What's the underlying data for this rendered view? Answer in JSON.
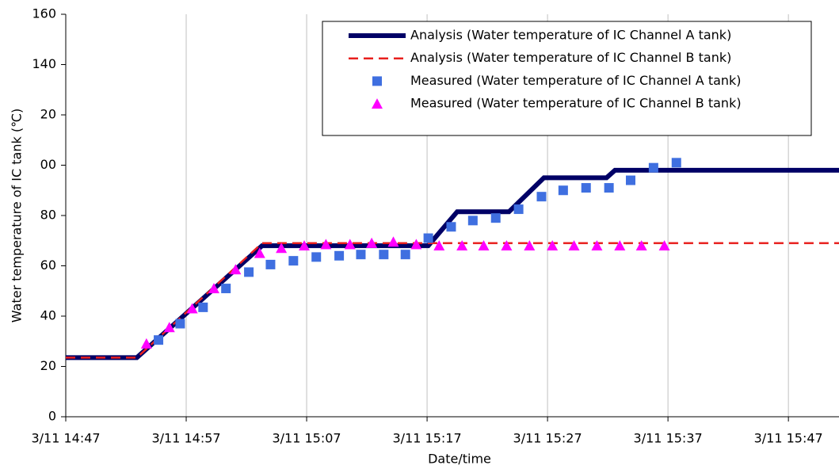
{
  "chart_data": {
    "type": "line",
    "xlabel": "Date/time",
    "ylabel": "Water temperature of IC tank (℃)",
    "xlim": [
      887,
      951.2
    ],
    "xticks": [
      {
        "value": 887,
        "label": "3/11 14:47"
      },
      {
        "value": 897,
        "label": "3/11 14:57"
      },
      {
        "value": 907,
        "label": "3/11 15:07"
      },
      {
        "value": 917,
        "label": "3/11 15:17"
      },
      {
        "value": 927,
        "label": "3/11 15:27"
      },
      {
        "value": 937,
        "label": "3/11 15:37"
      },
      {
        "value": 947,
        "label": "3/11 15:47"
      }
    ],
    "ylim": [
      0,
      160
    ],
    "yticks": [
      0,
      20,
      40,
      60,
      80,
      {
        "value": 100,
        "label": "00"
      },
      {
        "value": 120,
        "label": "20"
      },
      140,
      160
    ],
    "grid": "x",
    "legend": "upper right",
    "series": [
      {
        "name": "Analysis (Water temperature of IC Channel A tank)",
        "style": "solid",
        "color": "#000066",
        "x": [
          887,
          892.9,
          903.3,
          917.1,
          919.5,
          923.8,
          926.7,
          931.9,
          932.6,
          951.2
        ],
        "values": [
          23.5,
          23.5,
          68,
          68,
          81.5,
          81.5,
          95,
          95,
          98,
          98
        ]
      },
      {
        "name": "Analysis (Water temperature of IC Channel B tank)",
        "style": "dashed",
        "color": "#e8201e",
        "x": [
          887,
          892.9,
          903.3,
          951.2
        ],
        "values": [
          23.5,
          23.5,
          69,
          69
        ]
      },
      {
        "name": "Measured (Water temperature of IC Channel A tank)",
        "style": "square",
        "color": "#3f6fe0",
        "x": [
          894.7,
          896.5,
          898.4,
          900.3,
          902.2,
          904.0,
          905.9,
          907.8,
          909.7,
          911.5,
          913.4,
          915.2,
          917.1,
          919.0,
          920.8,
          922.7,
          924.6,
          926.5,
          928.3,
          930.2,
          932.1,
          933.9,
          935.8,
          937.7
        ],
        "values": [
          30.5,
          37,
          43.5,
          51,
          57.5,
          60.5,
          62,
          63.5,
          64,
          64.5,
          64.5,
          64.5,
          71,
          75.5,
          78,
          79,
          82.5,
          87.5,
          90,
          91,
          91,
          94,
          99,
          101
        ]
      },
      {
        "name": "Measured (Water temperature of IC Channel B tank)",
        "style": "triangle",
        "color": "#ff00ff",
        "x": [
          893.7,
          895.6,
          897.5,
          899.3,
          901.1,
          903.1,
          904.9,
          906.8,
          908.6,
          910.6,
          912.4,
          914.2,
          916.1,
          918.0,
          919.9,
          921.7,
          923.6,
          925.5,
          927.4,
          929.2,
          931.1,
          933.0,
          934.8,
          936.7
        ],
        "values": [
          29,
          35.5,
          43,
          51,
          58.5,
          65,
          67,
          68,
          68.5,
          68.5,
          69,
          69.5,
          68.5,
          68,
          68,
          68,
          68,
          68,
          68,
          68,
          68,
          68,
          68,
          68
        ]
      }
    ]
  }
}
